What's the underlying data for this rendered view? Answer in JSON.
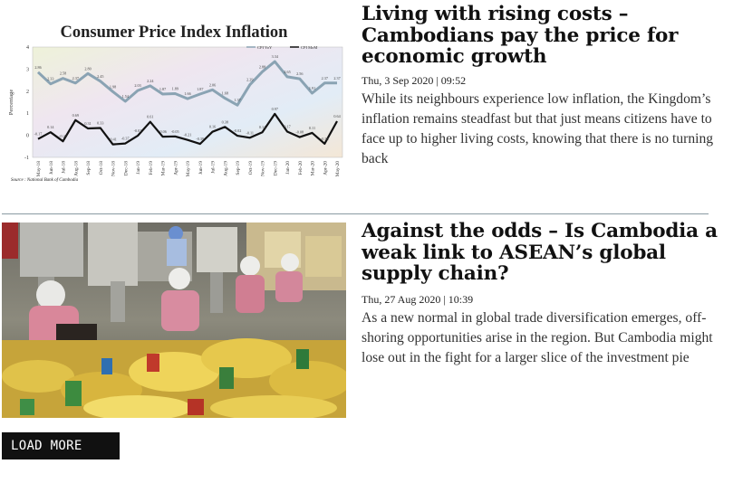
{
  "articles": [
    {
      "headline": "Living with rising costs – Cambodians pay the price for economic growth",
      "date": "Thu, 3 Sep 2020 | 09:52",
      "excerpt": "While its neighbours experience low inflation, the Kingdom’s inflation remains steadfast but that just means citizens have to face up to higher living costs, knowing that there is no turning back",
      "chart": {
        "title": "Consumer Price Index Inflation",
        "ylabel": "Percentage",
        "source": "Source : National Bank of Cambodia",
        "legend": [
          "CPI YoY",
          "CPI MoM"
        ]
      }
    },
    {
      "headline": "Against the odds – Is Cambodia a weak link to ASEAN’s global supply chain?",
      "date": "Thu, 27 Aug 2020 | 10:39",
      "excerpt": "As a new normal in global trade diversification emerges, off-shoring opportunities arise in the region. But Cambodia might lose out in the fight for a larger slice of the investment pie",
      "image": "factory-workers-packing-snacks-photo"
    }
  ],
  "load_more_label": "LOAD MORE",
  "colors": {
    "yoy_line": "#8aa3b3",
    "mom_line": "#111111",
    "button_bg": "#111111"
  },
  "chart_data": {
    "type": "line",
    "title": "Consumer Price Index Inflation",
    "ylabel": "Percentage",
    "ylim": [
      -1,
      4
    ],
    "yticks": [
      "-1",
      "0",
      "1",
      "2",
      "3",
      "4"
    ],
    "categories": [
      "May-18",
      "Jun-18",
      "Jul-18",
      "Aug-18",
      "Sep-18",
      "Oct-18",
      "Nov-18",
      "Dec-18",
      "Jan-19",
      "Feb-19",
      "Mar-19",
      "Apr-19",
      "May-19",
      "Jun-19",
      "Jul-19",
      "Aug-19",
      "Sep-19",
      "Oct-19",
      "Nov-19",
      "Dec-19",
      "Jan-20",
      "Feb-20",
      "Mar-20",
      "Apr-20",
      "May-20"
    ],
    "series": [
      {
        "name": "CPI YoY",
        "values": [
          2.86,
          2.33,
          2.58,
          2.37,
          2.8,
          2.45,
          1.98,
          1.54,
          2.03,
          2.24,
          1.87,
          1.89,
          1.66,
          1.87,
          2.06,
          1.68,
          1.37,
          2.29,
          2.88,
          3.34,
          2.65,
          2.56,
          1.91,
          2.37,
          2.37
        ]
      },
      {
        "name": "CPI MoM",
        "values": [
          -0.17,
          0.14,
          -0.27,
          0.69,
          0.31,
          0.33,
          -0.41,
          -0.37,
          -0.02,
          0.61,
          -0.06,
          -0.05,
          -0.21,
          -0.39,
          0.16,
          0.38,
          -0.02,
          -0.11,
          0.14,
          0.97,
          0.17,
          -0.08,
          0.11,
          -0.38,
          0.64
        ]
      }
    ],
    "legend": "top-right",
    "grid": false,
    "source": "Source : National Bank of Cambodia"
  }
}
